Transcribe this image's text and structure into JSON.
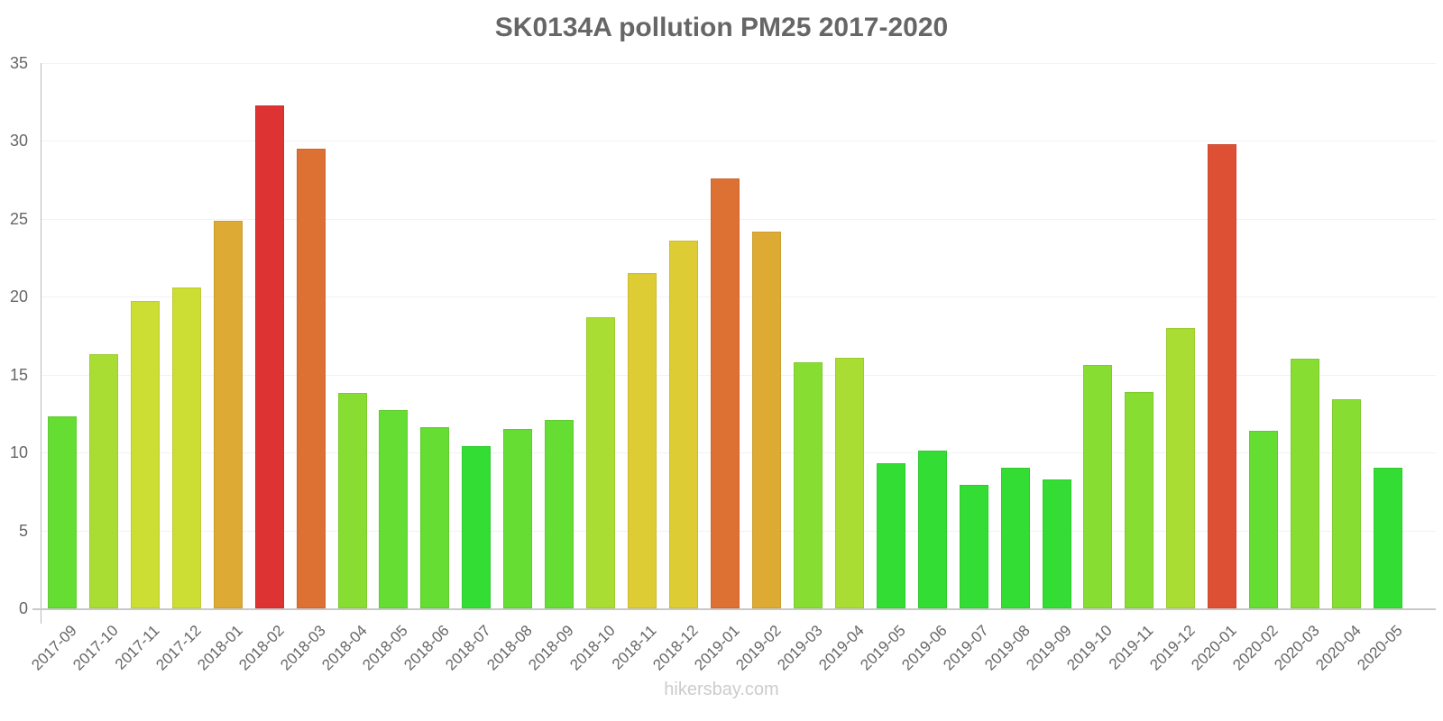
{
  "chart_data": {
    "type": "bar",
    "title": "SK0134A pollution PM25 2017-2020",
    "xlabel": "",
    "ylabel": "",
    "ylim": [
      0,
      35
    ],
    "yticks": [
      0,
      5,
      10,
      15,
      20,
      25,
      30,
      35
    ],
    "grid": true,
    "legend": null,
    "categories": [
      "2017-09",
      "2017-10",
      "2017-11",
      "2017-12",
      "2018-01",
      "2018-02",
      "2018-03",
      "2018-04",
      "2018-05",
      "2018-06",
      "2018-07",
      "2018-08",
      "2018-09",
      "2018-10",
      "2018-11",
      "2018-12",
      "2019-01",
      "2019-02",
      "2019-03",
      "2019-04",
      "2019-05",
      "2019-06",
      "2019-07",
      "2019-08",
      "2019-09",
      "2019-10",
      "2019-11",
      "2019-12",
      "2020-01",
      "2020-02",
      "2020-03",
      "2020-04",
      "2020-05"
    ],
    "values": [
      12.3,
      16.3,
      19.7,
      20.6,
      24.9,
      32.3,
      29.5,
      13.8,
      12.7,
      11.6,
      10.4,
      11.5,
      12.1,
      18.7,
      21.5,
      23.6,
      27.6,
      24.2,
      15.8,
      16.1,
      9.3,
      10.1,
      7.9,
      9.0,
      8.3,
      15.6,
      13.9,
      18.0,
      29.8,
      11.4,
      16.0,
      13.4,
      9.0
    ],
    "colors": [
      "#66dd33",
      "#aadd33",
      "#ccdd33",
      "#ccdd33",
      "#ddaa33",
      "#dd3333",
      "#dd7033",
      "#88dd33",
      "#66dd33",
      "#66dd33",
      "#33dd33",
      "#66dd33",
      "#66dd33",
      "#aadd33",
      "#ddcc33",
      "#ddcc33",
      "#dd7033",
      "#ddaa33",
      "#88dd33",
      "#aadd33",
      "#33dd33",
      "#33dd33",
      "#33dd33",
      "#33dd33",
      "#33dd33",
      "#88dd33",
      "#88dd33",
      "#aadd33",
      "#dd5033",
      "#66dd33",
      "#88dd33",
      "#88dd33",
      "#33dd33"
    ]
  },
  "footer": {
    "watermark": "hikersbay.com"
  }
}
